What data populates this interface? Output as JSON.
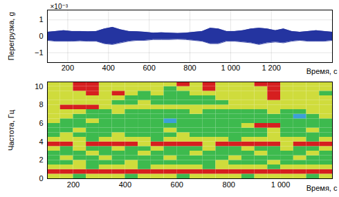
{
  "chart_data": [
    {
      "type": "area",
      "ylabel": "Перегрузка, g",
      "xlabel": "Время, с",
      "y_multiplier_label": "×10⁻³",
      "color": "#2434a0",
      "grid": true,
      "xlim": [
        100,
        1500
      ],
      "xticks": [
        200,
        400,
        600,
        800,
        {
          "value": 1000,
          "label": "1 000"
        },
        {
          "value": 1200,
          "label": "1 200"
        }
      ],
      "ylim": [
        -1.6,
        1.6
      ],
      "yticks": [
        {
          "value": -1,
          "label": "−1"
        },
        0,
        1
      ],
      "x": [
        100,
        140,
        180,
        220,
        260,
        300,
        340,
        380,
        420,
        460,
        500,
        540,
        580,
        620,
        660,
        700,
        740,
        780,
        820,
        860,
        900,
        940,
        980,
        1020,
        1060,
        1100,
        1140,
        1180,
        1220,
        1260,
        1300,
        1340,
        1380,
        1420,
        1460,
        1500
      ],
      "upper": [
        0.25,
        0.3,
        0.35,
        0.3,
        0.3,
        0.28,
        0.3,
        0.45,
        0.55,
        0.4,
        0.3,
        0.28,
        0.25,
        0.2,
        0.22,
        0.2,
        0.18,
        0.2,
        0.25,
        0.3,
        0.5,
        0.45,
        0.3,
        0.3,
        0.35,
        0.45,
        0.5,
        0.45,
        0.35,
        0.45,
        0.3,
        0.25,
        0.3,
        0.35,
        0.3,
        0.25
      ],
      "lower": [
        -0.25,
        -0.3,
        -0.3,
        -0.3,
        -0.28,
        -0.3,
        -0.3,
        -0.45,
        -0.5,
        -0.4,
        -0.3,
        -0.25,
        -0.25,
        -0.2,
        -0.2,
        -0.2,
        -0.18,
        -0.2,
        -0.25,
        -0.3,
        -0.45,
        -0.45,
        -0.3,
        -0.3,
        -0.35,
        -0.4,
        -0.5,
        -0.4,
        -0.35,
        -0.4,
        -0.3,
        -0.25,
        -0.3,
        -0.3,
        -0.3,
        -0.25
      ]
    },
    {
      "type": "heatmap",
      "ylabel": "Частота, Гц",
      "xlabel": "Время, с",
      "grid": false,
      "xlim": [
        100,
        1200
      ],
      "xticks": [
        200,
        400,
        600,
        800,
        {
          "value": 1000,
          "label": "1 000"
        }
      ],
      "ylim": [
        0,
        10.5
      ],
      "yticks": [
        0,
        2,
        4,
        6,
        8,
        10
      ],
      "levels": [
        0,
        1,
        2,
        3
      ],
      "colors": [
        "#3d9fd8",
        "#3dba4e",
        "#cfdc3c",
        "#d61f1f"
      ],
      "x_bins": [
        100,
        150,
        200,
        250,
        300,
        350,
        400,
        450,
        500,
        550,
        600,
        650,
        700,
        750,
        800,
        850,
        900,
        950,
        1000,
        1050,
        1100,
        1150,
        1200
      ],
      "y_bins": [
        0,
        0.5,
        1,
        1.5,
        2,
        2.5,
        3,
        3.5,
        4,
        4.5,
        5,
        5.5,
        6,
        6.5,
        7,
        7.5,
        8,
        8.5,
        9,
        9.5,
        10,
        10.5
      ],
      "z": [
        [
          2,
          2,
          1,
          2,
          2,
          2,
          1,
          2,
          2,
          2,
          1,
          2,
          2,
          2,
          2,
          1,
          2,
          2,
          2,
          2,
          1,
          2
        ],
        [
          3,
          3,
          3,
          3,
          3,
          3,
          3,
          3,
          3,
          3,
          3,
          3,
          3,
          3,
          3,
          3,
          3,
          3,
          3,
          3,
          3,
          3
        ],
        [
          2,
          2,
          2,
          1,
          2,
          2,
          2,
          1,
          2,
          2,
          2,
          2,
          1,
          2,
          2,
          2,
          2,
          1,
          2,
          2,
          2,
          2
        ],
        [
          1,
          1,
          2,
          1,
          1,
          1,
          2,
          1,
          1,
          1,
          1,
          1,
          1,
          2,
          1,
          1,
          1,
          2,
          1,
          1,
          1,
          1
        ],
        [
          1,
          2,
          1,
          1,
          2,
          1,
          1,
          1,
          1,
          2,
          1,
          1,
          1,
          1,
          2,
          1,
          1,
          1,
          1,
          2,
          1,
          1
        ],
        [
          1,
          1,
          1,
          2,
          1,
          1,
          1,
          2,
          1,
          1,
          1,
          2,
          1,
          1,
          1,
          1,
          2,
          1,
          1,
          1,
          2,
          1
        ],
        [
          2,
          1,
          2,
          1,
          1,
          2,
          1,
          1,
          2,
          1,
          1,
          1,
          2,
          1,
          1,
          2,
          1,
          1,
          2,
          1,
          1,
          2
        ],
        [
          3,
          3,
          2,
          3,
          3,
          3,
          3,
          2,
          3,
          3,
          3,
          3,
          2,
          3,
          3,
          3,
          3,
          3,
          2,
          3,
          3,
          3
        ],
        [
          2,
          2,
          2,
          1,
          2,
          2,
          2,
          2,
          1,
          2,
          2,
          2,
          2,
          2,
          1,
          2,
          2,
          2,
          2,
          2,
          1,
          2
        ],
        [
          1,
          2,
          1,
          1,
          1,
          2,
          1,
          1,
          1,
          1,
          2,
          1,
          1,
          1,
          1,
          1,
          1,
          2,
          1,
          1,
          1,
          1
        ],
        [
          1,
          1,
          2,
          1,
          1,
          1,
          1,
          1,
          1,
          2,
          1,
          1,
          1,
          1,
          1,
          1,
          1,
          2,
          1,
          1,
          2,
          1
        ],
        [
          1,
          1,
          1,
          1,
          1,
          1,
          1,
          1,
          1,
          1,
          1,
          1,
          1,
          1,
          1,
          2,
          3,
          3,
          1,
          1,
          1,
          1
        ],
        [
          2,
          1,
          1,
          2,
          1,
          1,
          1,
          1,
          1,
          0,
          1,
          1,
          1,
          1,
          1,
          1,
          1,
          1,
          1,
          1,
          1,
          1
        ],
        [
          2,
          2,
          1,
          1,
          1,
          1,
          1,
          1,
          1,
          1,
          1,
          1,
          1,
          1,
          1,
          1,
          1,
          1,
          1,
          0,
          1,
          2
        ],
        [
          2,
          2,
          2,
          1,
          1,
          2,
          1,
          1,
          1,
          1,
          1,
          2,
          1,
          1,
          1,
          1,
          1,
          2,
          1,
          1,
          2,
          2
        ],
        [
          2,
          3,
          3,
          3,
          2,
          2,
          2,
          2,
          2,
          2,
          2,
          2,
          2,
          2,
          2,
          2,
          2,
          2,
          2,
          2,
          2,
          2
        ],
        [
          2,
          2,
          2,
          2,
          2,
          1,
          1,
          2,
          1,
          1,
          1,
          1,
          1,
          1,
          2,
          2,
          2,
          2,
          2,
          2,
          2,
          2
        ],
        [
          2,
          2,
          2,
          2,
          2,
          2,
          1,
          1,
          1,
          1,
          1,
          1,
          1,
          2,
          2,
          2,
          2,
          3,
          2,
          2,
          2,
          2
        ],
        [
          2,
          2,
          2,
          3,
          2,
          3,
          2,
          1,
          2,
          1,
          1,
          2,
          2,
          2,
          2,
          2,
          2,
          3,
          2,
          2,
          2,
          1
        ],
        [
          2,
          2,
          3,
          3,
          2,
          2,
          2,
          2,
          2,
          1,
          2,
          2,
          3,
          2,
          2,
          2,
          2,
          3,
          2,
          2,
          2,
          2
        ],
        [
          2,
          2,
          3,
          3,
          2,
          2,
          2,
          2,
          2,
          2,
          3,
          2,
          3,
          2,
          2,
          2,
          3,
          3,
          2,
          2,
          2,
          2
        ]
      ]
    }
  ]
}
